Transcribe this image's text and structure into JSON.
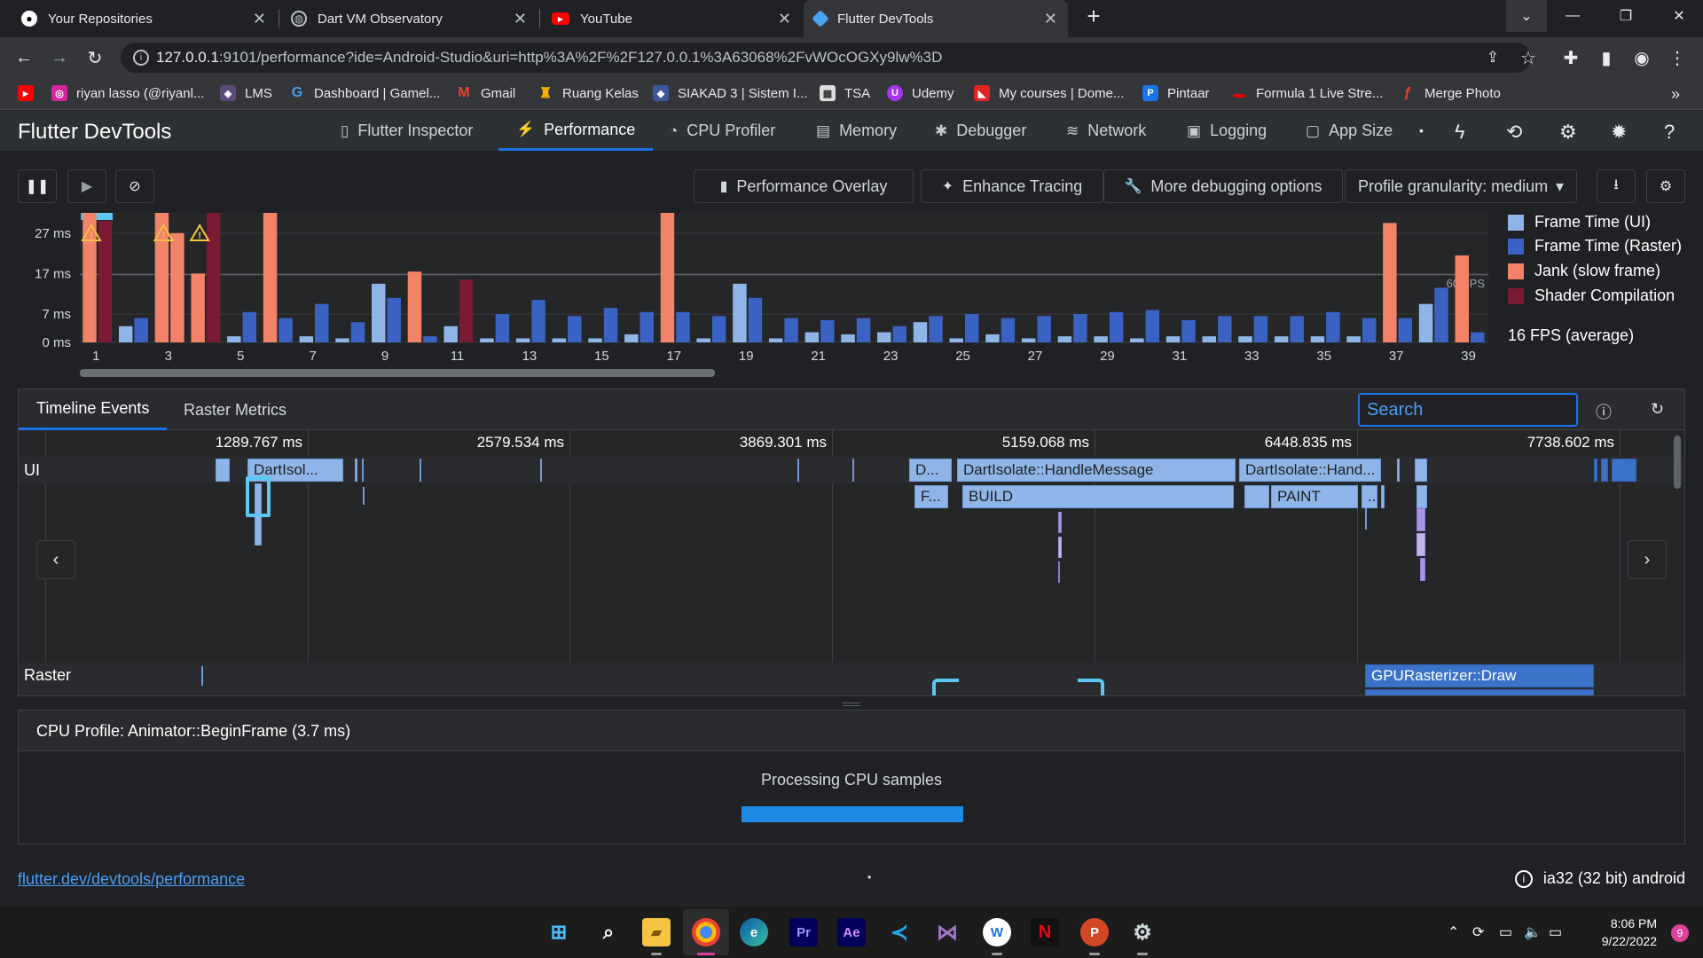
{
  "browser": {
    "tabs": [
      {
        "title": "Your Repositories"
      },
      {
        "title": "Dart VM Observatory"
      },
      {
        "title": "YouTube"
      },
      {
        "title": "Flutter DevTools"
      }
    ],
    "url_host": "127.0.0.1",
    "url_rest": ":9101/performance?ide=Android-Studio&uri=http%3A%2F%2F127.0.0.1%3A63068%2FvWOcOGXy9lw%3D",
    "bookmarks": [
      "riyan lasso (@riyanl...",
      "LMS",
      "Dashboard | Gamel...",
      "Gmail",
      "Ruang Kelas",
      "SIAKAD 3 | Sistem I...",
      "TSA",
      "Udemy",
      "My courses | Dome...",
      "Pintaar",
      "Formula 1 Live Stre...",
      "Merge Photo"
    ],
    "bookmarks_more": "»"
  },
  "devtools": {
    "title": "Flutter DevTools",
    "tabs": [
      "Flutter Inspector",
      "Performance",
      "CPU Profiler",
      "Memory",
      "Debugger",
      "Network",
      "Logging",
      "App Size"
    ],
    "active_tab": "Performance",
    "overflow_dot": "•"
  },
  "controls": {
    "performance_overlay": "Performance Overlay",
    "enhance_tracing": "Enhance Tracing",
    "more_debugging": "More debugging options",
    "profile_granularity": "Profile granularity: medium"
  },
  "chart_data": {
    "type": "bar",
    "title": "",
    "xlabel": "",
    "ylabel": "",
    "y_ticks": [
      "27 ms",
      "17 ms",
      "7 ms",
      "0 ms"
    ],
    "ylim": [
      0,
      32
    ],
    "x_tick_labels": [
      "1",
      "3",
      "5",
      "7",
      "9",
      "11",
      "13",
      "15",
      "17",
      "19",
      "21",
      "23",
      "25",
      "27",
      "29",
      "31",
      "33",
      "35",
      "37",
      "39"
    ],
    "target_line_label": "60 FPS",
    "target_line_value": 16.7,
    "legend": [
      {
        "name": "Frame Time (UI)",
        "color": "#8fb5e8"
      },
      {
        "name": "Frame Time (Raster)",
        "color": "#3a62c2"
      },
      {
        "name": "Jank (slow frame)",
        "color": "#f28268"
      },
      {
        "name": "Shader Compilation",
        "color": "#7a1a35"
      }
    ],
    "average_fps": "16 FPS (average)",
    "frames": [
      {
        "frame": 1,
        "ui": 32,
        "raster": 30,
        "jank": true,
        "shader": true,
        "selected": true,
        "warning": true
      },
      {
        "frame": 2,
        "ui": 4,
        "raster": 6,
        "jank": false,
        "shader": false
      },
      {
        "frame": 3,
        "ui": 32,
        "raster": 27,
        "jank": true,
        "shader": false,
        "warning": true
      },
      {
        "frame": 4,
        "ui": 17,
        "raster": 32,
        "jank": true,
        "shader": true,
        "warning": true
      },
      {
        "frame": 5,
        "ui": 1.5,
        "raster": 7.5,
        "jank": false,
        "shader": false
      },
      {
        "frame": 6,
        "ui": 32,
        "raster": 6,
        "jank": true,
        "shader": false
      },
      {
        "frame": 7,
        "ui": 1.5,
        "raster": 9.5,
        "jank": false,
        "shader": false
      },
      {
        "frame": 8,
        "ui": 1,
        "raster": 5,
        "jank": false,
        "shader": false
      },
      {
        "frame": 9,
        "ui": 14.5,
        "raster": 11,
        "jank": false,
        "shader": false
      },
      {
        "frame": 10,
        "ui": 17.5,
        "raster": 1.5,
        "jank": true,
        "shader": false
      },
      {
        "frame": 11,
        "ui": 4,
        "raster": 15.5,
        "jank": false,
        "shader": true
      },
      {
        "frame": 12,
        "ui": 1,
        "raster": 7,
        "jank": false,
        "shader": false
      },
      {
        "frame": 13,
        "ui": 1,
        "raster": 10.5,
        "jank": false,
        "shader": false
      },
      {
        "frame": 14,
        "ui": 1,
        "raster": 6.5,
        "jank": false,
        "shader": false
      },
      {
        "frame": 15,
        "ui": 1,
        "raster": 8.5,
        "jank": false,
        "shader": false
      },
      {
        "frame": 16,
        "ui": 2,
        "raster": 7.5,
        "jank": false,
        "shader": false
      },
      {
        "frame": 17,
        "ui": 32,
        "raster": 7.5,
        "jank": true,
        "shader": false
      },
      {
        "frame": 18,
        "ui": 1,
        "raster": 6.5,
        "jank": false,
        "shader": false
      },
      {
        "frame": 19,
        "ui": 14.5,
        "raster": 11,
        "jank": false,
        "shader": false
      },
      {
        "frame": 20,
        "ui": 1,
        "raster": 6,
        "jank": false,
        "shader": false
      },
      {
        "frame": 21,
        "ui": 2.5,
        "raster": 5.5,
        "jank": false,
        "shader": false
      },
      {
        "frame": 22,
        "ui": 2,
        "raster": 6,
        "jank": false,
        "shader": false
      },
      {
        "frame": 23,
        "ui": 2.5,
        "raster": 4,
        "jank": false,
        "shader": false
      },
      {
        "frame": 24,
        "ui": 5,
        "raster": 6.5,
        "jank": false,
        "shader": false
      },
      {
        "frame": 25,
        "ui": 1,
        "raster": 7,
        "jank": false,
        "shader": false
      },
      {
        "frame": 26,
        "ui": 2,
        "raster": 6,
        "jank": false,
        "shader": false
      },
      {
        "frame": 27,
        "ui": 1,
        "raster": 6.5,
        "jank": false,
        "shader": false
      },
      {
        "frame": 28,
        "ui": 1.5,
        "raster": 7,
        "jank": false,
        "shader": false
      },
      {
        "frame": 29,
        "ui": 1.5,
        "raster": 7.5,
        "jank": false,
        "shader": false
      },
      {
        "frame": 30,
        "ui": 1,
        "raster": 8,
        "jank": false,
        "shader": false
      },
      {
        "frame": 31,
        "ui": 1.5,
        "raster": 5.5,
        "jank": false,
        "shader": false
      },
      {
        "frame": 32,
        "ui": 1.5,
        "raster": 6.5,
        "jank": false,
        "shader": false
      },
      {
        "frame": 33,
        "ui": 1.5,
        "raster": 6.5,
        "jank": false,
        "shader": false
      },
      {
        "frame": 34,
        "ui": 1.5,
        "raster": 6.5,
        "jank": false,
        "shader": false
      },
      {
        "frame": 35,
        "ui": 1.5,
        "raster": 7.5,
        "jank": false,
        "shader": false
      },
      {
        "frame": 36,
        "ui": 1.5,
        "raster": 6,
        "jank": false,
        "shader": false
      },
      {
        "frame": 37,
        "ui": 29.5,
        "raster": 6,
        "jank": true,
        "shader": false
      },
      {
        "frame": 38,
        "ui": 9.5,
        "raster": 13.5,
        "jank": false,
        "shader": false
      },
      {
        "frame": 39,
        "ui": 21.5,
        "raster": 2.5,
        "jank": true,
        "shader": false
      }
    ]
  },
  "timeline": {
    "tabs": [
      "Timeline Events",
      "Raster Metrics"
    ],
    "active_tab": "Timeline Events",
    "search_placeholder": "Search",
    "ruler": [
      "1289.767 ms",
      "2579.534 ms",
      "3869.301 ms",
      "5159.068 ms",
      "6448.835 ms",
      "7738.602 ms"
    ],
    "lanes": [
      "UI",
      "Raster"
    ],
    "events": {
      "dart_isolate_short": "DartIsol...",
      "d_short": "D...",
      "handle_message": "DartIsolate::HandleMessage",
      "handle_short": "DartIsolate::Hand...",
      "f_short": "F...",
      "build": "BUILD",
      "paint": "PAINT",
      "dots": "..",
      "gpu_rasterizer": "GPURasterizer::Draw"
    }
  },
  "cpu_profile": {
    "title": "CPU Profile: Animator::BeginFrame (3.7 ms)",
    "message": "Processing CPU samples",
    "progress": 1.0
  },
  "status": {
    "link": "flutter.dev/devtools/performance",
    "dot": "•",
    "platform": "ia32 (32 bit) android"
  },
  "taskbar": {
    "time": "8:06 PM",
    "date": "9/22/2022",
    "notifications": "9"
  }
}
